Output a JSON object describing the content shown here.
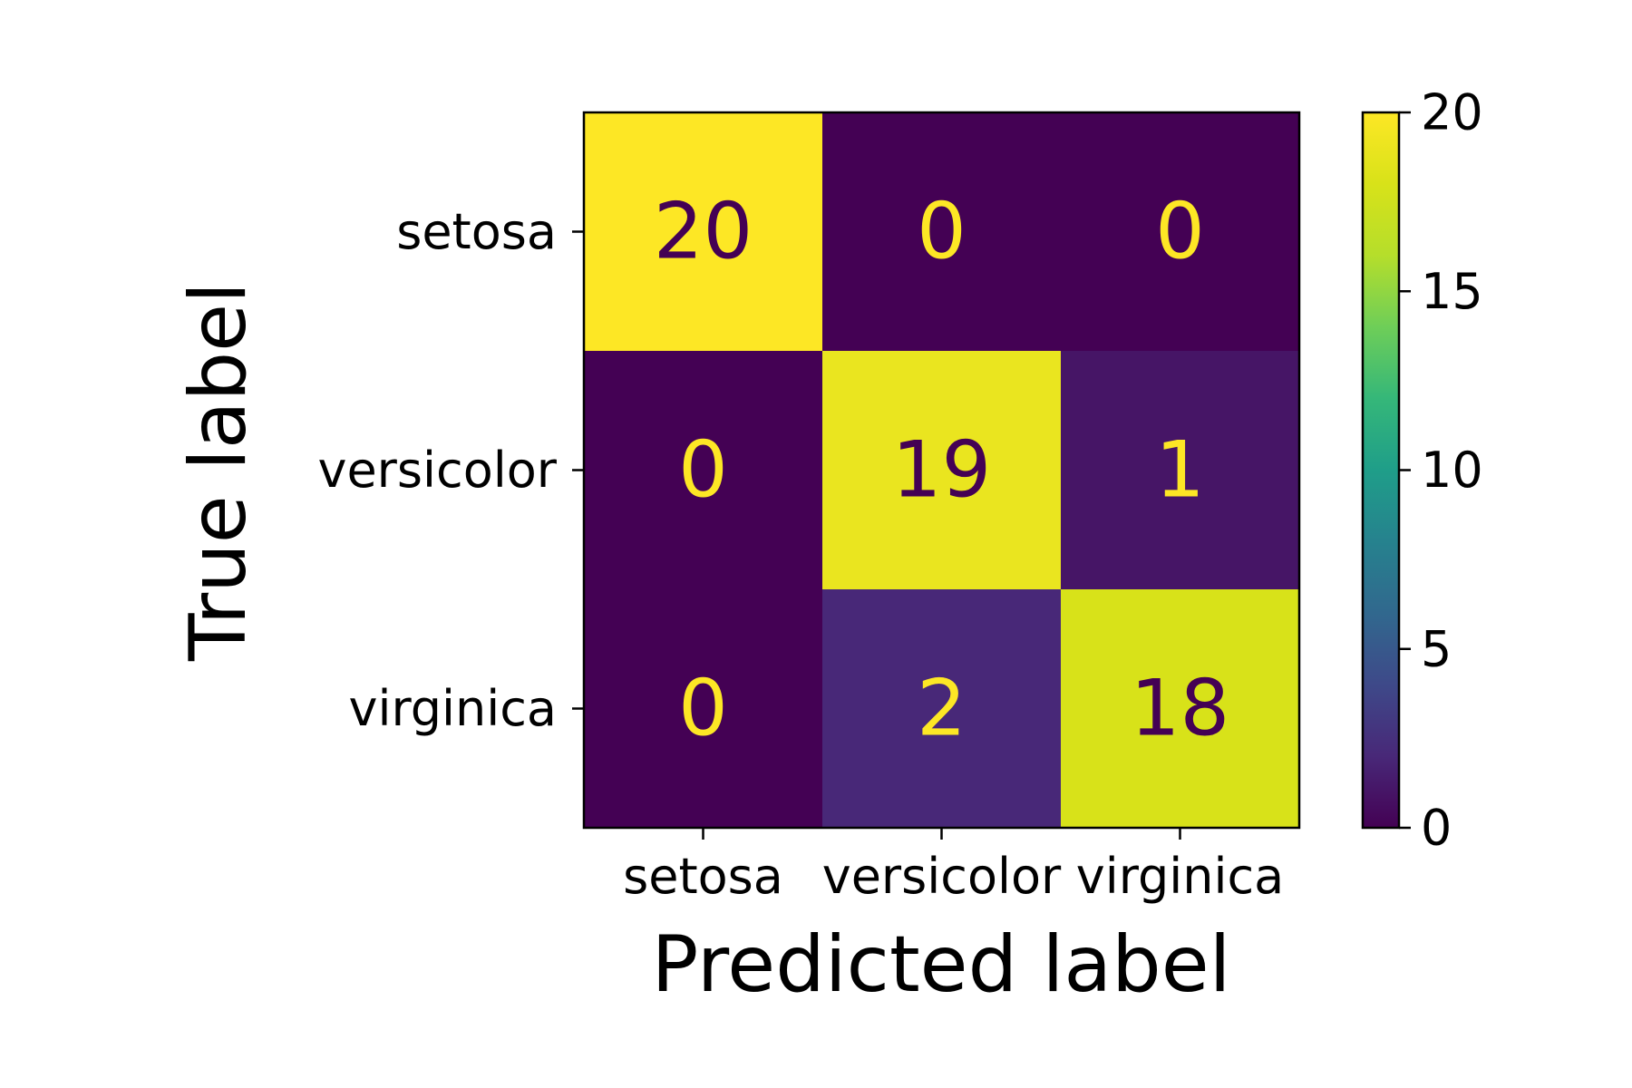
{
  "chart_data": {
    "type": "heatmap",
    "title": "",
    "xlabel": "Predicted label",
    "ylabel": "True label",
    "x_categories": [
      "setosa",
      "versicolor",
      "virginica"
    ],
    "y_categories": [
      "setosa",
      "versicolor",
      "virginica"
    ],
    "matrix": [
      [
        20,
        0,
        0
      ],
      [
        0,
        19,
        1
      ],
      [
        0,
        2,
        18
      ]
    ],
    "colormap": "viridis",
    "colorbar": {
      "range": [
        0,
        20
      ],
      "ticks": [
        "0",
        "5",
        "10",
        "15",
        "20"
      ]
    },
    "grid": false
  },
  "colors": {
    "text_on_dark": "#fde725",
    "text_on_light": "#440154",
    "axis_line": "#000000"
  }
}
